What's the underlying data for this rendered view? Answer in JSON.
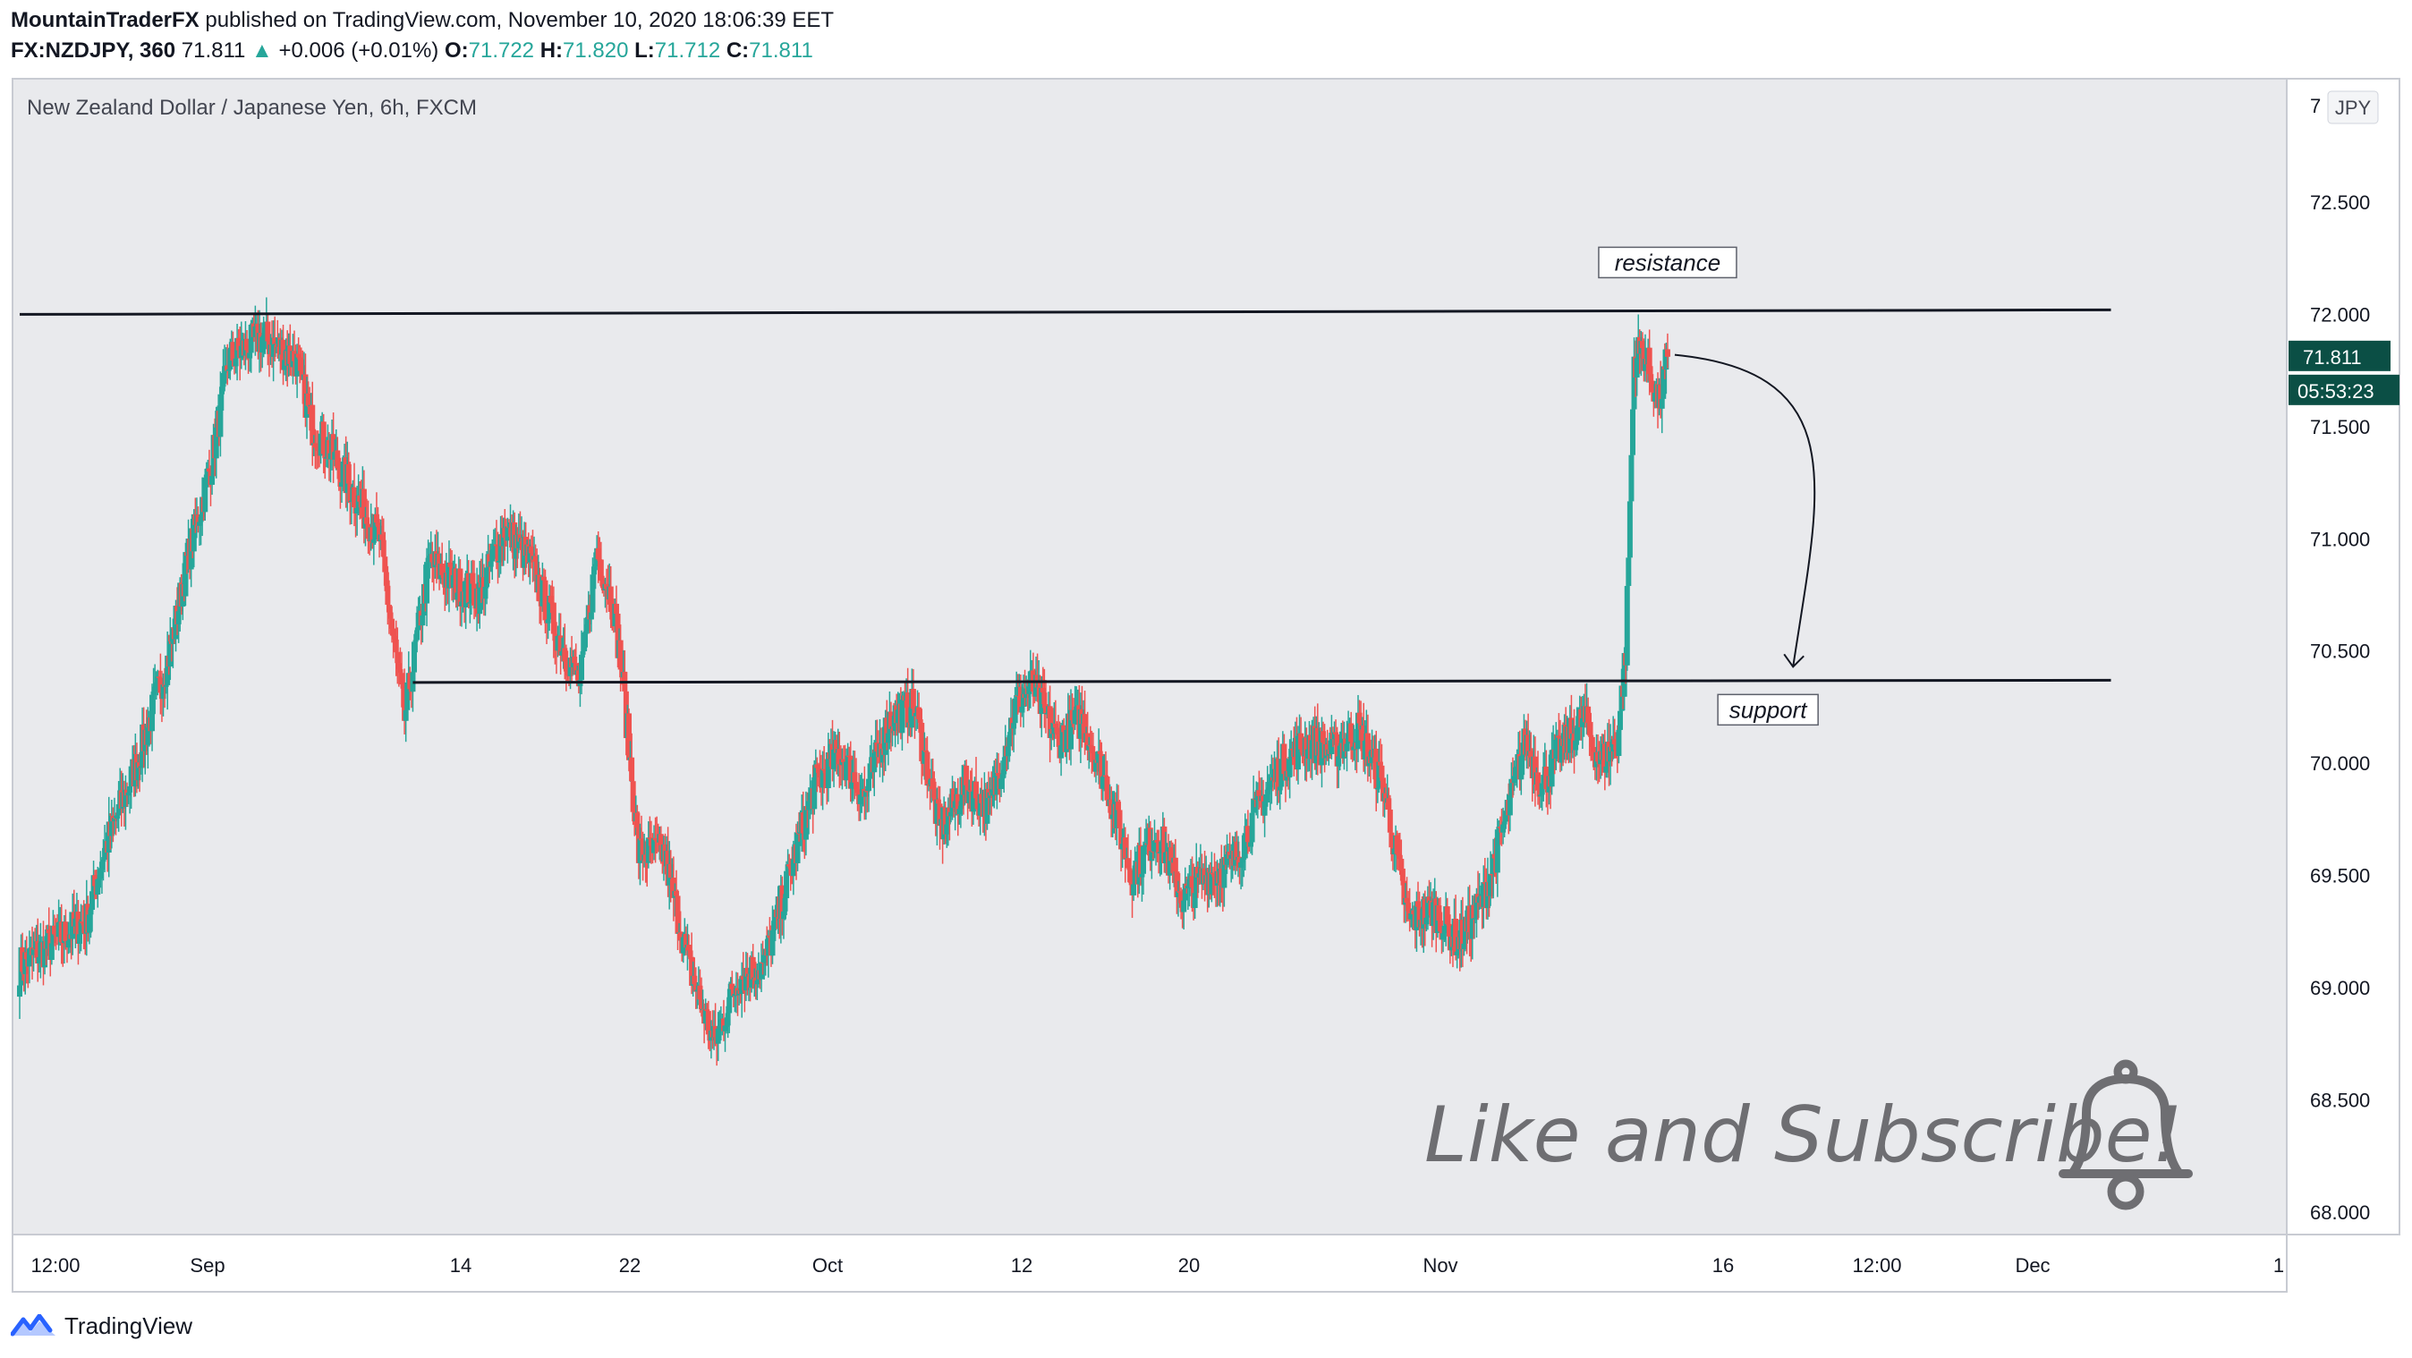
{
  "header": {
    "author": "MountainTraderFX",
    "published": "published on TradingView.com, November 10, 2020 18:06:39 EET",
    "symbol": "FX:NZDJPY, 360",
    "last": "71.811",
    "arrow": "▲",
    "change": "+0.006 (+0.01%)",
    "o_label": "O:",
    "o_value": "71.722",
    "h_label": "H:",
    "h_value": "71.820",
    "l_label": "L:",
    "l_value": "71.712",
    "c_label": "C:",
    "c_value": "71.811"
  },
  "footer": {
    "brand": "TradingView",
    "logo_icon": "tradingview-logo-icon"
  },
  "colors": {
    "up": "#26a69a",
    "down": "#ef5350",
    "background": "#e9eaed",
    "price_tag": "#0b4f45"
  },
  "chart_data": {
    "type": "candlestick",
    "title": "New Zealand Dollar / Japanese Yen, 6h, FXCM",
    "currency": "JPY",
    "interval": "6h",
    "y_ticks": [
      "68.000",
      "68.500",
      "69.000",
      "69.500",
      "70.000",
      "70.500",
      "71.000",
      "71.500",
      "72.000",
      "72.500",
      "7"
    ],
    "y_range": [
      67.9,
      73.05
    ],
    "x_ticks": [
      "12:00",
      "Sep",
      "14",
      "22",
      "Oct",
      "12",
      "20",
      "Nov",
      "16",
      "12:00",
      "Dec",
      "1"
    ],
    "last_price": "71.811",
    "countdown": "05:53:23",
    "overlay_text": "Like and Subscribe!",
    "bell_icon": "bell-icon",
    "trend_lines": [
      {
        "label": "resistance",
        "from": {
          "bar": 0,
          "price": 72.0
        },
        "to": {
          "bar": 250,
          "price": 72.02
        }
      },
      {
        "label": "support",
        "from": {
          "bar": 47,
          "price": 70.36
        },
        "to": {
          "bar": 250,
          "price": 70.37
        }
      }
    ],
    "forecast_arrow": {
      "from_price": 71.82,
      "to_price": 70.43
    },
    "anchors": [
      [
        0,
        69.1
      ],
      [
        4,
        69.2
      ],
      [
        8,
        69.3
      ],
      [
        10,
        69.6
      ],
      [
        14,
        70.0
      ],
      [
        18,
        70.5
      ],
      [
        20,
        70.9
      ],
      [
        23,
        71.35
      ],
      [
        25,
        71.8
      ],
      [
        29,
        71.9
      ],
      [
        33,
        71.8
      ],
      [
        35,
        71.5
      ],
      [
        37,
        71.4
      ],
      [
        40,
        71.2
      ],
      [
        43,
        71.0
      ],
      [
        46,
        70.2
      ],
      [
        49,
        70.9
      ],
      [
        52,
        70.8
      ],
      [
        55,
        70.75
      ],
      [
        58,
        71.05
      ],
      [
        61,
        70.9
      ],
      [
        64,
        70.6
      ],
      [
        67,
        70.35
      ],
      [
        69,
        70.95
      ],
      [
        71,
        70.7
      ],
      [
        72,
        70.4
      ],
      [
        74,
        69.6
      ],
      [
        77,
        69.6
      ],
      [
        80,
        69.1
      ],
      [
        83,
        68.75
      ],
      [
        86,
        69.05
      ],
      [
        89,
        69.1
      ],
      [
        92,
        69.5
      ],
      [
        95,
        69.9
      ],
      [
        98,
        70.05
      ],
      [
        101,
        69.85
      ],
      [
        104,
        70.2
      ],
      [
        107,
        70.25
      ],
      [
        110,
        69.7
      ],
      [
        113,
        69.9
      ],
      [
        116,
        69.8
      ],
      [
        119,
        70.25
      ],
      [
        121,
        70.35
      ],
      [
        124,
        70.1
      ],
      [
        127,
        70.2
      ],
      [
        130,
        69.9
      ],
      [
        133,
        69.5
      ],
      [
        136,
        69.7
      ],
      [
        139,
        69.4
      ],
      [
        142,
        69.5
      ],
      [
        145,
        69.55
      ],
      [
        148,
        69.8
      ],
      [
        151,
        70.0
      ],
      [
        154,
        70.1
      ],
      [
        157,
        70.05
      ],
      [
        160,
        70.15
      ],
      [
        163,
        69.9
      ],
      [
        166,
        69.3
      ],
      [
        169,
        69.35
      ],
      [
        172,
        69.2
      ],
      [
        175,
        69.4
      ],
      [
        178,
        69.8
      ],
      [
        180,
        70.1
      ],
      [
        182,
        69.9
      ],
      [
        184,
        70.05
      ],
      [
        187,
        70.2
      ],
      [
        189,
        70.0
      ],
      [
        191,
        70.1
      ],
      [
        192,
        70.5
      ],
      [
        193,
        71.8
      ],
      [
        194,
        71.85
      ],
      [
        196,
        71.6
      ],
      [
        197,
        71.8
      ]
    ]
  }
}
